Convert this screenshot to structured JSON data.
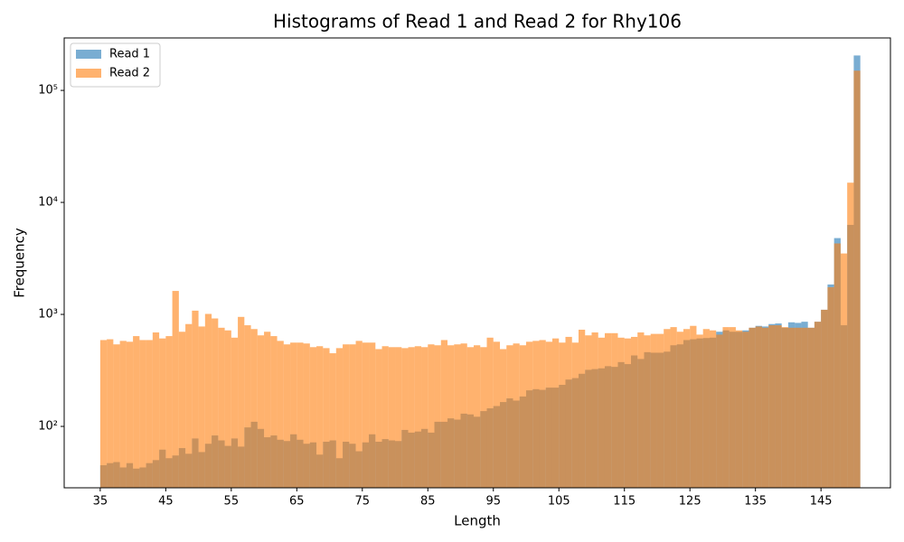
{
  "chart_data": {
    "type": "histogram",
    "title": "Histograms of Read 1 and Read 2 for Rhy106",
    "x_label": "Length",
    "y_label": "Frequency",
    "bins": [
      35,
      36,
      37,
      38,
      39,
      40,
      41,
      42,
      43,
      44,
      45,
      46,
      47,
      48,
      49,
      50,
      51,
      52,
      53,
      54,
      55,
      56,
      57,
      58,
      59,
      60,
      61,
      62,
      63,
      64,
      65,
      66,
      67,
      68,
      69,
      70,
      71,
      72,
      73,
      74,
      75,
      76,
      77,
      78,
      79,
      80,
      81,
      82,
      83,
      84,
      85,
      86,
      87,
      88,
      89,
      90,
      91,
      92,
      93,
      94,
      95,
      96,
      97,
      98,
      99,
      100,
      101,
      102,
      103,
      104,
      105,
      106,
      107,
      108,
      109,
      110,
      111,
      112,
      113,
      114,
      115,
      116,
      117,
      118,
      119,
      120,
      121,
      122,
      123,
      124,
      125,
      126,
      127,
      128,
      129,
      130,
      131,
      132,
      133,
      134,
      135,
      136,
      137,
      138,
      139,
      140,
      141,
      142,
      143,
      144,
      145,
      146,
      147,
      148,
      149,
      150,
      151
    ],
    "series": [
      {
        "name": "Read 1",
        "color": "#1f77b4",
        "values": [
          45,
          47,
          48,
          43,
          47,
          42,
          43,
          47,
          50,
          62,
          52,
          55,
          64,
          57,
          78,
          59,
          70,
          83,
          75,
          67,
          78,
          66,
          98,
          110,
          95,
          80,
          83,
          76,
          74,
          85,
          76,
          70,
          72,
          56,
          73,
          75,
          52,
          73,
          70,
          60,
          72,
          85,
          73,
          77,
          75,
          74,
          93,
          88,
          90,
          95,
          88,
          110,
          110,
          118,
          115,
          130,
          128,
          122,
          137,
          145,
          152,
          165,
          178,
          170,
          185,
          210,
          215,
          212,
          222,
          222,
          235,
          262,
          270,
          295,
          320,
          325,
          330,
          345,
          340,
          375,
          360,
          430,
          400,
          460,
          455,
          455,
          465,
          530,
          540,
          590,
          600,
          610,
          615,
          620,
          700,
          720,
          700,
          700,
          720,
          760,
          790,
          780,
          820,
          830,
          760,
          850,
          840,
          860,
          760,
          860,
          1100,
          1850,
          4800,
          800,
          6300,
          205000
        ]
      },
      {
        "name": "Read 2",
        "color": "#ff7f0e",
        "values": [
          590,
          600,
          540,
          580,
          570,
          640,
          590,
          590,
          690,
          610,
          640,
          1620,
          700,
          820,
          1080,
          780,
          1010,
          920,
          760,
          720,
          620,
          950,
          800,
          740,
          650,
          700,
          640,
          580,
          540,
          560,
          560,
          550,
          510,
          520,
          500,
          450,
          500,
          540,
          540,
          580,
          560,
          560,
          490,
          520,
          510,
          510,
          500,
          510,
          520,
          510,
          540,
          530,
          590,
          530,
          540,
          550,
          510,
          530,
          510,
          620,
          570,
          490,
          530,
          550,
          530,
          570,
          580,
          590,
          570,
          610,
          560,
          630,
          560,
          730,
          650,
          690,
          620,
          680,
          680,
          620,
          610,
          630,
          690,
          650,
          670,
          670,
          740,
          770,
          700,
          740,
          790,
          660,
          740,
          720,
          660,
          770,
          770,
          720,
          700,
          760,
          780,
          760,
          800,
          800,
          770,
          760,
          760,
          760,
          760,
          860,
          1100,
          1750,
          4300,
          3500,
          15000,
          150000
        ]
      }
    ],
    "xlim": [
      29.5,
      155.6
    ],
    "xticks": [
      35,
      45,
      55,
      65,
      75,
      85,
      95,
      105,
      115,
      125,
      135,
      145
    ],
    "ylim": [
      28.3,
      294000
    ],
    "yscale": "log",
    "yticks": [
      {
        "value": 100,
        "label": "10²"
      },
      {
        "value": 1000,
        "label": "10³"
      },
      {
        "value": 10000,
        "label": "10⁴"
      },
      {
        "value": 100000,
        "label": "10⁵"
      }
    ],
    "opacity": 0.6,
    "legend": "upper-left"
  }
}
